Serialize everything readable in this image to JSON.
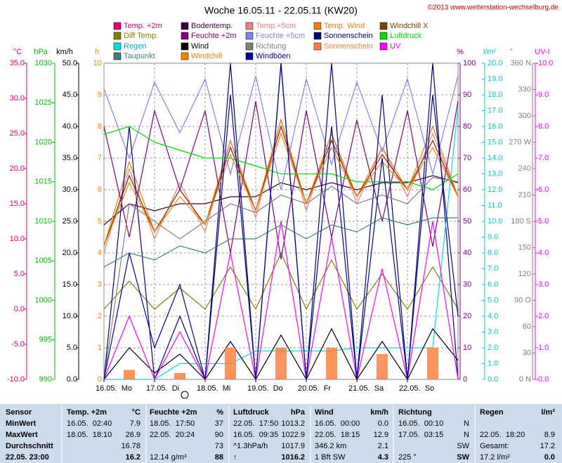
{
  "chart_data": {
    "type": "line",
    "title": "Woche 16.05.11 - 22.05.11 (KW20)",
    "copyright": "©2013 www.wetterstation-wechselburg.de",
    "grid": true,
    "xlim": [
      0,
      7
    ],
    "xticks": [
      {
        "value": 0,
        "label": "16.05.  Mo"
      },
      {
        "value": 1,
        "label": "17.05.  Di"
      },
      {
        "value": 2,
        "label": "18.05.  Mi"
      },
      {
        "value": 3,
        "label": "19.05.  Do"
      },
      {
        "value": 4,
        "label": "20.05.  Fr"
      },
      {
        "value": 5,
        "label": "21.05.  Sa"
      },
      {
        "value": 6,
        "label": "22.05.  So"
      }
    ],
    "x": [
      0,
      0.5,
      1,
      1.5,
      2,
      2.5,
      3,
      3.5,
      4,
      4.5,
      5,
      5.5,
      6,
      6.5,
      7
    ],
    "axes": [
      {
        "name": "°C",
        "color": "#e0007f",
        "lim": [
          -10,
          35
        ],
        "ticks": [
          {
            "value": -10,
            "label": "-10.0"
          },
          {
            "value": -5,
            "label": "-5.0"
          },
          {
            "value": 0,
            "label": "0.0"
          },
          {
            "value": 5,
            "label": "5.0"
          },
          {
            "value": 10,
            "label": "10.0"
          },
          {
            "value": 15,
            "label": "15.0"
          },
          {
            "value": 20,
            "label": "20.0"
          },
          {
            "value": 25,
            "label": "25.0"
          },
          {
            "value": 30,
            "label": "30.0"
          },
          {
            "value": 35,
            "label": "35.0"
          }
        ]
      },
      {
        "name": "hPa",
        "color": "#00c000",
        "lim": [
          990,
          1030
        ],
        "ticks": [
          990,
          995,
          1000,
          1005,
          1010,
          1015,
          1020,
          1025,
          1030
        ]
      },
      {
        "name": "km/h",
        "color": "#000000",
        "lim": [
          0,
          50
        ],
        "ticks": [
          {
            "value": 0,
            "label": "0.0"
          },
          {
            "value": 5,
            "label": "5.0"
          },
          {
            "value": 10,
            "label": "10.0"
          },
          {
            "value": 15,
            "label": "15.0"
          },
          {
            "value": 20,
            "label": "20.0"
          },
          {
            "value": 25,
            "label": "25.0"
          },
          {
            "value": 30,
            "label": "30.0"
          },
          {
            "value": 35,
            "label": "35.0"
          },
          {
            "value": 40,
            "label": "40.0"
          },
          {
            "value": 45,
            "label": "45.0"
          },
          {
            "value": 50,
            "label": "50.0"
          }
        ]
      },
      {
        "name": "h",
        "color": "#ff8000",
        "lim": [
          0,
          10
        ],
        "ticks": [
          0,
          1,
          2,
          3,
          4,
          5,
          6,
          7,
          8,
          9,
          10
        ]
      },
      {
        "name": "%",
        "color": "#800080",
        "lim": [
          0,
          100
        ],
        "ticks": [
          0,
          10,
          20,
          30,
          40,
          50,
          60,
          70,
          80,
          90,
          100
        ]
      },
      {
        "name": "l/m²",
        "color": "#00c8d8",
        "lim": [
          0,
          20
        ],
        "ticks": [
          {
            "value": 0,
            "label": "0.0"
          },
          {
            "value": 1,
            "label": "1.0"
          },
          {
            "value": 2,
            "label": "2.0"
          },
          {
            "value": 3,
            "label": "3.0"
          },
          {
            "value": 4,
            "label": "4.0"
          },
          {
            "value": 5,
            "label": "5.0"
          },
          {
            "value": 6,
            "label": "6.0"
          },
          {
            "value": 7,
            "label": "7.0"
          },
          {
            "value": 8,
            "label": "8.0"
          },
          {
            "value": 9,
            "label": "9.0"
          },
          {
            "value": 10,
            "label": "10.0"
          },
          {
            "value": 11,
            "label": "11.0"
          },
          {
            "value": 12,
            "label": "12.0"
          },
          {
            "value": 13,
            "label": "13.0"
          },
          {
            "value": 14,
            "label": "14.0"
          },
          {
            "value": 15,
            "label": "15.0"
          },
          {
            "value": 16,
            "label": "16.0"
          },
          {
            "value": 17,
            "label": "17.0"
          },
          {
            "value": 18,
            "label": "18.0"
          },
          {
            "value": 19,
            "label": "19.0"
          },
          {
            "value": 20,
            "label": "20.0"
          }
        ]
      },
      {
        "name": "°",
        "color": "#808080",
        "lim": [
          0,
          360
        ],
        "ticks": [
          {
            "value": 0,
            "label": "0 N"
          },
          30,
          60,
          {
            "value": 90,
            "label": "90 O"
          },
          120,
          150,
          {
            "value": 180,
            "label": "180 S"
          },
          210,
          240,
          {
            "value": 270,
            "label": "270 W"
          },
          300,
          330,
          {
            "value": 360,
            "label": "360 N"
          }
        ]
      },
      {
        "name": "UV-I",
        "color": "#ff00ff",
        "lim": [
          0,
          10
        ],
        "ticks": [
          {
            "value": 0,
            "label": "0.0"
          },
          {
            "value": 1,
            "label": "1.0"
          },
          {
            "value": 2,
            "label": "2.0"
          },
          {
            "value": 3,
            "label": "3.0"
          },
          {
            "value": 4,
            "label": "4.0"
          },
          {
            "value": 5,
            "label": "5.0"
          },
          {
            "value": 6,
            "label": "6.0"
          },
          {
            "value": 7,
            "label": "7.0"
          },
          {
            "value": 8,
            "label": "8.0"
          },
          {
            "value": 9,
            "label": "9.0"
          },
          {
            "value": 10,
            "label": "10.0"
          }
        ]
      }
    ],
    "series": [
      {
        "name": "Temp. +2m",
        "color": "#e0006f",
        "axis": "°C",
        "values": [
          9,
          19,
          11,
          17,
          12,
          23,
          14,
          26,
          15,
          24,
          16,
          22,
          17,
          24,
          16
        ]
      },
      {
        "name": "Bodentemp.",
        "color": "#400040",
        "axis": "°C",
        "values": [
          12,
          15,
          14,
          15,
          15,
          16,
          16,
          18,
          17,
          18,
          17,
          18,
          18,
          19,
          18
        ]
      },
      {
        "name": "Temp.+5cm",
        "color": "#f08080",
        "axis": "°C",
        "values": [
          8,
          20,
          10,
          18,
          11,
          24,
          13,
          27,
          14,
          25,
          15,
          23,
          16,
          25,
          16
        ]
      },
      {
        "name": "Temp. Wind",
        "color": "#f08000",
        "axis": "°C",
        "values": [
          9,
          21,
          11,
          17,
          12,
          24,
          14,
          27,
          15,
          25,
          16,
          23,
          17,
          26,
          16
        ]
      },
      {
        "name": "Windchill X",
        "color": "#804000",
        "axis": "°C",
        "values": [
          9,
          19,
          11,
          17,
          12,
          23,
          14,
          26,
          15,
          24,
          16,
          22,
          17,
          24,
          16
        ]
      },
      {
        "name": "Diff Temp.",
        "color": "#808000",
        "axis": "°C",
        "values": [
          0,
          4,
          0,
          3,
          0,
          6,
          0,
          8,
          0,
          7,
          0,
          5,
          0,
          6,
          0
        ]
      },
      {
        "name": "Feuchte +2m",
        "color": "#800080",
        "axis": "%",
        "values": [
          80,
          45,
          85,
          60,
          85,
          40,
          88,
          38,
          85,
          45,
          82,
          50,
          85,
          42,
          88
        ]
      },
      {
        "name": "Feuchte +5cm",
        "color": "#8080ff",
        "axis": "%",
        "values": [
          92,
          70,
          94,
          78,
          95,
          65,
          96,
          60,
          95,
          68,
          94,
          72,
          95,
          65,
          96
        ]
      },
      {
        "name": "Sonnenschein",
        "color": "#000080",
        "axis": "h",
        "values": [
          0,
          8,
          0,
          2,
          0,
          10,
          0,
          10,
          0,
          10,
          0,
          9,
          0,
          10,
          0
        ]
      },
      {
        "name": "Luftdruck",
        "color": "#00e000",
        "axis": "hPa",
        "values": [
          1021,
          1022,
          1020,
          1019,
          1018,
          1018,
          1017,
          1016,
          1016,
          1016,
          1015,
          1015,
          1015,
          1014,
          1016
        ]
      },
      {
        "name": "Regen",
        "color": "#00e0e0",
        "axis": "l/m²",
        "values": [
          0,
          0,
          0,
          1,
          1,
          1,
          1.8,
          1.8,
          1.8,
          1.8,
          2,
          2,
          2,
          2,
          17.2
        ]
      },
      {
        "name": "Wind",
        "color": "#000000",
        "axis": "km/h",
        "values": [
          0,
          5,
          1,
          4,
          0,
          6,
          0,
          7,
          0,
          8,
          0,
          6,
          0,
          8,
          3
        ]
      },
      {
        "name": "Richtung",
        "color": "#808080",
        "axis": "°",
        "values": [
          0,
          200,
          180,
          160,
          180,
          200,
          190,
          210,
          200,
          220,
          200,
          210,
          200,
          230,
          225
        ]
      },
      {
        "name": "Sonnenschein",
        "color": "#ff8040",
        "axis": "h",
        "type": "bar",
        "values": [
          0,
          0.3,
          0,
          0.2,
          0,
          1,
          0,
          1,
          0,
          1,
          0,
          0.8,
          0,
          1,
          0
        ]
      },
      {
        "name": "UV",
        "color": "#ff00ff",
        "axis": "UV-I",
        "values": [
          0,
          2,
          0,
          1.5,
          0,
          4,
          0,
          5,
          0,
          4.5,
          0,
          3.5,
          0,
          5,
          0
        ]
      },
      {
        "name": "Taupunkt",
        "color": "#408080",
        "axis": "°C",
        "values": [
          6,
          8,
          7,
          9,
          8,
          10,
          10,
          12,
          10,
          12,
          11,
          13,
          12,
          13,
          13
        ]
      },
      {
        "name": "Windchill",
        "color": "#ff8000",
        "axis": "°C",
        "values": [
          9,
          18,
          11,
          16,
          12,
          22,
          14,
          25,
          15,
          23,
          16,
          21,
          17,
          23,
          16
        ]
      },
      {
        "name": "Windböen",
        "color": "#0000a0",
        "axis": "km/h",
        "values": [
          0,
          20,
          5,
          15,
          0,
          45,
          0,
          50,
          0,
          40,
          0,
          35,
          0,
          45,
          10
        ]
      }
    ]
  },
  "table": {
    "header": [
      "Sensor",
      "Temp. +2m",
      "°C",
      "Feuchte +2m",
      "%",
      "Luftdruck",
      "hPa",
      "Wind",
      "km/h",
      "Richtung",
      null,
      "Regen",
      "l/m²"
    ],
    "rows": [
      [
        "MinWert",
        "16.05.  02:40",
        "7.9",
        "18.05.  17:50",
        "37",
        "22.05.  17:50",
        "1013.2",
        "16.05.  00:00",
        "0.0",
        "16.05.  00:10",
        "N",
        null,
        null
      ],
      [
        "MaxWert",
        "18.05.  18:10",
        "26.9",
        "22.05.  20:24",
        "90",
        "16.05.  09:35",
        "1022.9",
        "22.05.  18:15",
        "12.9",
        "17.05.  03:15",
        "N",
        "22.05.  18:20",
        "8.9"
      ],
      [
        "Durchschnitt",
        null,
        "16.78",
        null,
        "73",
        "^1.3hPa/h",
        "1017.9",
        "346.2 km",
        "2.1",
        null,
        "SW",
        "Gesamt:",
        "17.2"
      ],
      [
        "22.05. 23:00",
        null,
        "16.2",
        "12.14 g/m³",
        "88",
        "↑",
        "1016.2",
        "1 Bft SW",
        "4.3",
        "225 °",
        "SW",
        "17.2 l/m²",
        "0.0"
      ]
    ]
  }
}
